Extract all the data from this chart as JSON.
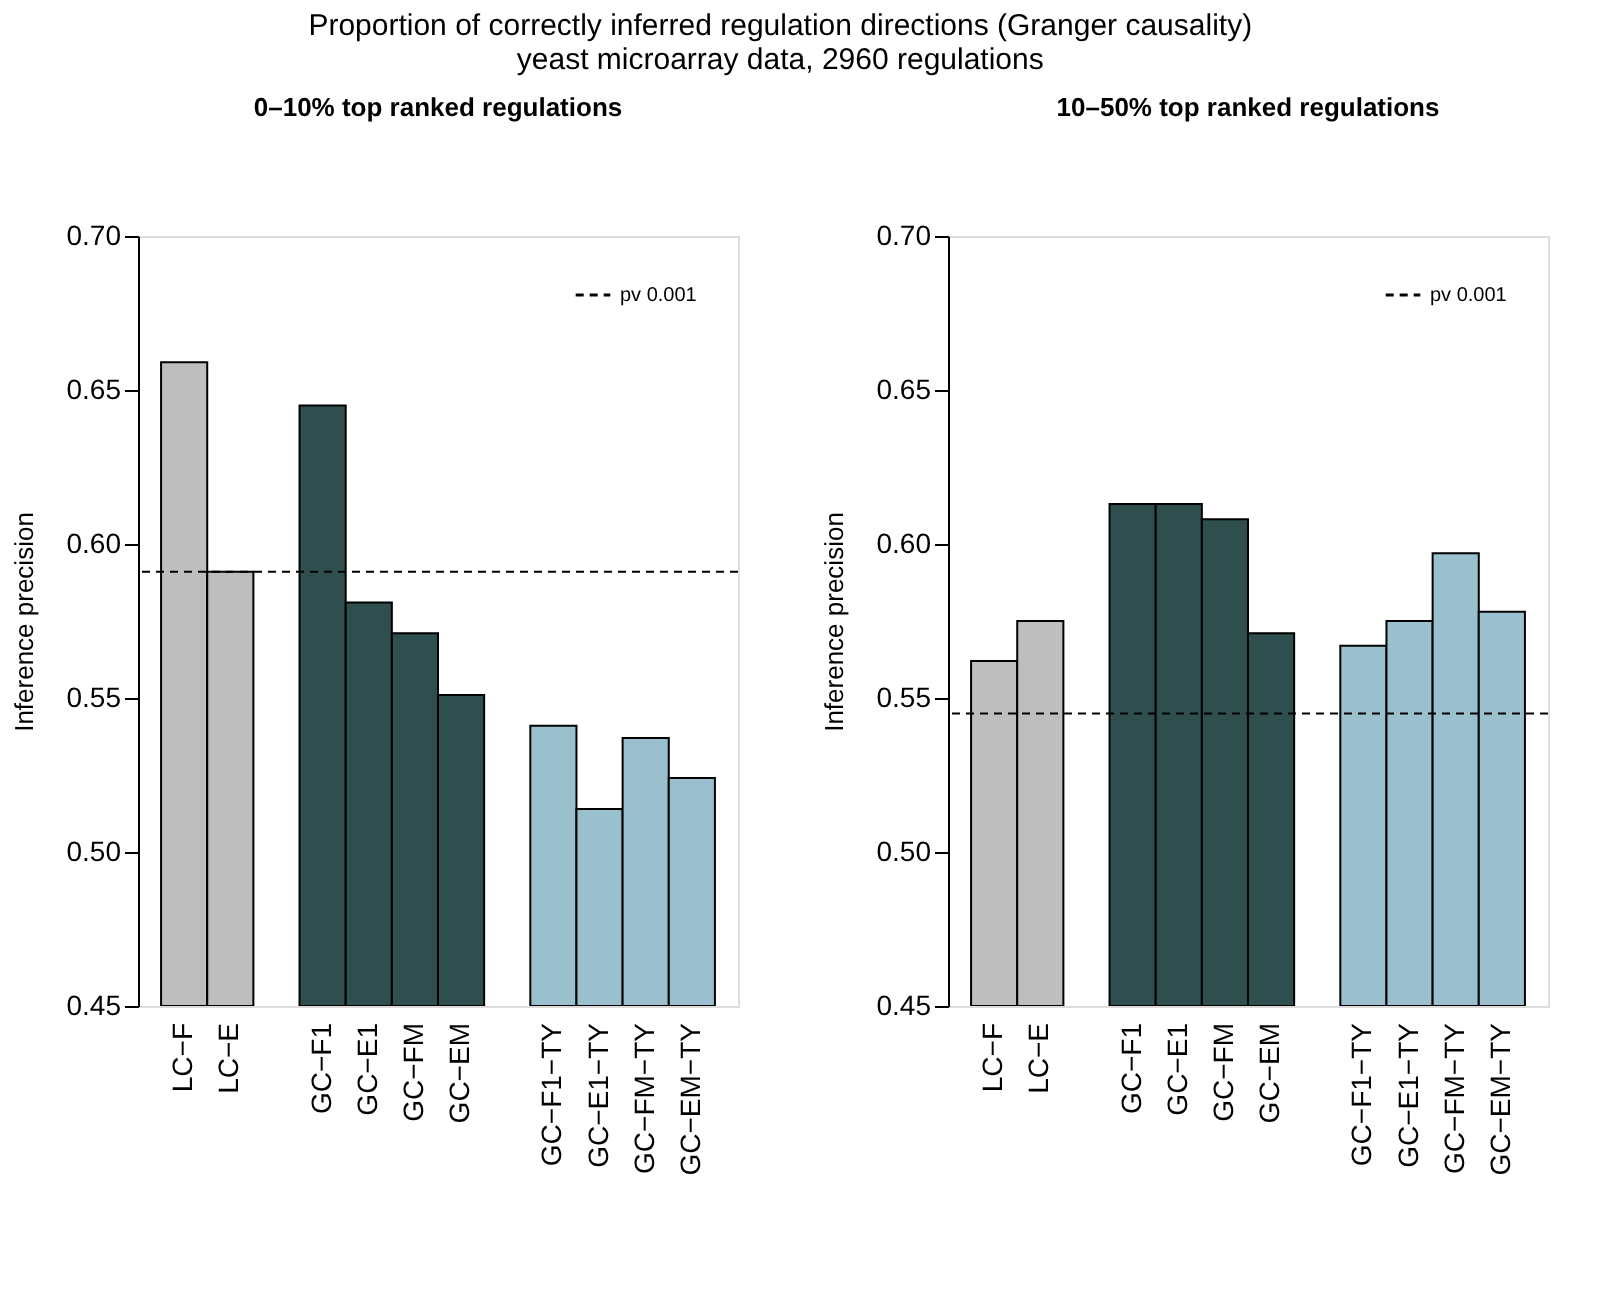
{
  "chart_data": [
    {
      "type": "bar",
      "title": "0–10% top ranked regulations",
      "ylabel": "Inference precision",
      "annotations": [
        "Proportion of correctly inferred regulation directions (Granger causality)",
        "yeast microarray data, 2960 regulations"
      ],
      "categories": [
        "LC−F",
        "LC−E",
        null,
        "GC−F1",
        "GC−E1",
        "GC−FM",
        "GC−EM",
        null,
        "GC−F1−TY",
        "GC−E1−TY",
        "GC−FM−TY",
        "GC−EM−TY"
      ],
      "values": [
        0.659,
        0.591,
        null,
        0.645,
        0.581,
        0.571,
        0.551,
        null,
        0.541,
        0.514,
        0.537,
        0.524
      ],
      "colors": [
        "#bebebe",
        "#bebebe",
        null,
        "#2f4f4f",
        "#2f4f4f",
        "#2f4f4f",
        "#2f4f4f",
        null,
        "#9ac0cd",
        "#9ac0cd",
        "#9ac0cd",
        "#9ac0cd"
      ],
      "ylim": [
        0.45,
        0.7
      ],
      "yticks": [
        {
          "value": 0.45,
          "label": "0.45"
        },
        {
          "value": 0.5,
          "label": "0.50"
        },
        {
          "value": 0.55,
          "label": "0.55"
        },
        {
          "value": 0.6,
          "label": "0.60"
        },
        {
          "value": 0.65,
          "label": "0.65"
        },
        {
          "value": 0.7,
          "label": "0.70"
        }
      ],
      "ref_lines": [
        {
          "axis": "y",
          "value": 0.591,
          "label": "pv 0.001",
          "line_style": "dashed",
          "color": "#000000"
        }
      ],
      "legend": "top right"
    },
    {
      "type": "bar",
      "title": "10–50% top ranked regulations",
      "ylabel": "Inference precision",
      "categories": [
        "LC−F",
        "LC−E",
        null,
        "GC−F1",
        "GC−E1",
        "GC−FM",
        "GC−EM",
        null,
        "GC−F1−TY",
        "GC−E1−TY",
        "GC−FM−TY",
        "GC−EM−TY"
      ],
      "values": [
        0.562,
        0.575,
        null,
        0.613,
        0.613,
        0.608,
        0.571,
        null,
        0.567,
        0.575,
        0.597,
        0.578
      ],
      "colors": [
        "#bebebe",
        "#bebebe",
        null,
        "#2f4f4f",
        "#2f4f4f",
        "#2f4f4f",
        "#2f4f4f",
        null,
        "#9ac0cd",
        "#9ac0cd",
        "#9ac0cd",
        "#9ac0cd"
      ],
      "ylim": [
        0.45,
        0.7
      ],
      "yticks": [
        {
          "value": 0.45,
          "label": "0.45"
        },
        {
          "value": 0.5,
          "label": "0.50"
        },
        {
          "value": 0.55,
          "label": "0.55"
        },
        {
          "value": 0.6,
          "label": "0.60"
        },
        {
          "value": 0.65,
          "label": "0.65"
        },
        {
          "value": 0.7,
          "label": "0.70"
        }
      ],
      "ref_lines": [
        {
          "axis": "y",
          "value": 0.545,
          "label": "pv 0.001",
          "line_style": "dashed",
          "color": "#000000"
        }
      ],
      "legend": "top right"
    }
  ]
}
